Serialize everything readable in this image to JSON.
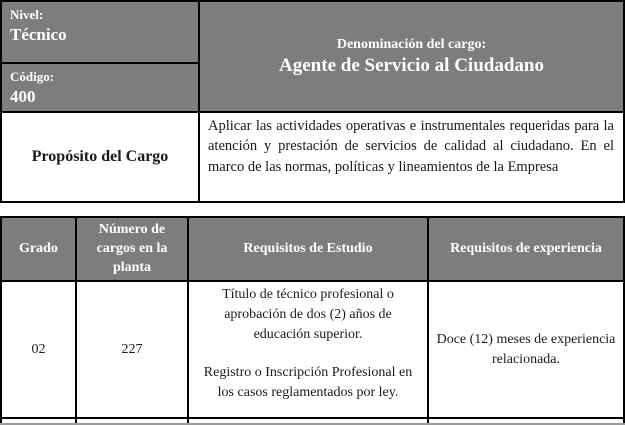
{
  "colors": {
    "header_bg": "#7d7d7d",
    "header_text": "#ffffff",
    "border_color": "#000000"
  },
  "table1": {
    "nivel_label": "Nivel:",
    "nivel_value": "Técnico",
    "codigo_label": "Código:",
    "codigo_value": "400",
    "denominacion_label": "Denominación del cargo:",
    "denominacion_value": "Agente de Servicio al Ciudadano",
    "proposito_label": "Propósito del Cargo",
    "proposito_text": "Aplicar las actividades operativas e instrumentales requeridas para la atención y prestación de servicios de calidad al ciudadano. En el marco de las normas, políticas y lineamientos de la Empresa"
  },
  "table2": {
    "headers": [
      "Grado",
      "Número de cargos en la planta",
      "Requisitos de Estudio",
      "Requisitos de experiencia"
    ],
    "row": {
      "grado": "02",
      "numero_cargos": "227",
      "requisitos_estudio_parrafo_1": "Título de técnico profesional o aprobación de dos (2) años de educación superior.",
      "requisitos_estudio_parrafo_2": "Registro o Inscripción Profesional en los casos reglamentados por ley.",
      "requisitos_experiencia": "Doce (12) meses de experiencia relacionada."
    }
  }
}
